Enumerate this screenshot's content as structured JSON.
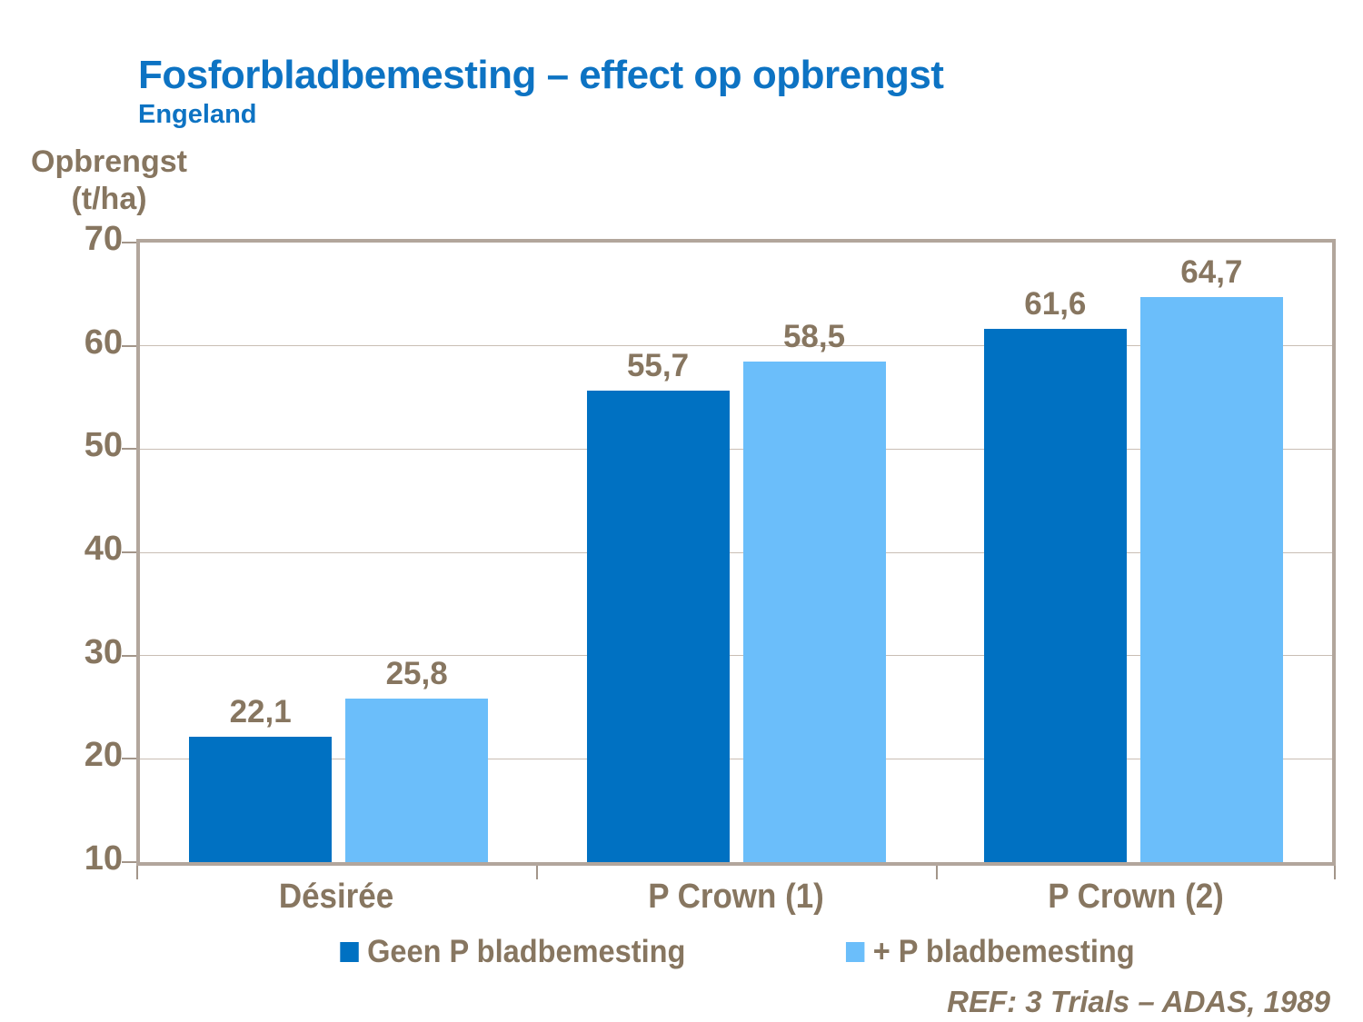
{
  "slide": {
    "title": "Fosforbladbemesting – effect op opbrengst",
    "subtitle": "Engeland",
    "y_axis_title_line1": "Opbrengst",
    "y_axis_title_line2": "(t/ha)",
    "reference": "REF: 3 Trials – ADAS, 1989"
  },
  "colors": {
    "title_blue": "#0D73C3",
    "text_brown": "#877660",
    "series1_dark_blue": "#0071C2",
    "series2_light_blue": "#6BBEFA",
    "gridline": "#C9BEB4",
    "plot_border": "#B2A69C",
    "tick": "#A3968A"
  },
  "chart_data": {
    "type": "bar",
    "title": "Fosforbladbemesting – effect op opbrengst (Engeland)",
    "ylabel": "Opbrengst (t/ha)",
    "xlabel": "",
    "categories": [
      "Désirée",
      "P Crown (1)",
      "P Crown (2)"
    ],
    "series": [
      {
        "name": "Geen P bladbemesting",
        "color": "#0071C2",
        "values": [
          22.1,
          55.7,
          61.6
        ],
        "labels": [
          "22,1",
          "55,7",
          "61,6"
        ]
      },
      {
        "name": "+ P bladbemesting",
        "color": "#6BBEFA",
        "values": [
          25.8,
          58.5,
          64.7
        ],
        "labels": [
          "25,8",
          "58,5",
          "64,7"
        ]
      }
    ],
    "ylim": [
      10,
      70
    ],
    "yticks": [
      10,
      20,
      30,
      40,
      50,
      60,
      70
    ],
    "grid": true,
    "legend_position": "bottom",
    "annotation": "REF: 3 Trials – ADAS, 1989"
  }
}
